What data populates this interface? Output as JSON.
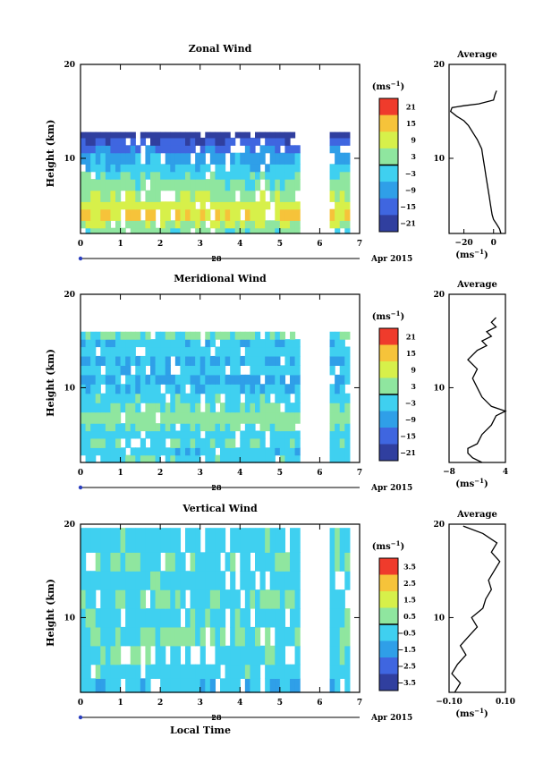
{
  "chart_data": [
    {
      "type": "heatmap",
      "title": "Zonal Wind",
      "ylabel": "Height (km)",
      "x_ticks": [
        "0",
        "1",
        "2",
        "3",
        "4",
        "5",
        "6",
        "7"
      ],
      "xlim": [
        0,
        7
      ],
      "y_ticks": [
        "10",
        "20"
      ],
      "ylim": [
        2,
        20
      ],
      "date_label": "28",
      "month_label": "Apr 2015",
      "colorbar": {
        "unit": "(ms",
        "unit_sup": "−1",
        "unit_close": ")",
        "ticks": [
          "21",
          "15",
          "9",
          "3",
          "−3",
          "−9",
          "−15",
          "−21"
        ],
        "range": [
          -24,
          24
        ]
      },
      "bands": [
        {
          "y0": 2.0,
          "y1": 2.6,
          "v": 1
        },
        {
          "y0": 2.6,
          "y1": 3.4,
          "v": 6
        },
        {
          "y0": 3.4,
          "y1": 4.6,
          "v": 12
        },
        {
          "y0": 4.6,
          "y1": 5.4,
          "v": 9
        },
        {
          "y0": 5.4,
          "y1": 6.6,
          "v": 5
        },
        {
          "y0": 6.6,
          "y1": 7.8,
          "v": 2
        },
        {
          "y0": 7.8,
          "y1": 8.6,
          "v": -1
        },
        {
          "y0": 8.6,
          "y1": 9.4,
          "v": -4
        },
        {
          "y0": 9.4,
          "y1": 10.6,
          "v": -8
        },
        {
          "y0": 10.6,
          "y1": 11.4,
          "v": -13
        },
        {
          "y0": 11.4,
          "y1": 12.2,
          "v": -17
        },
        {
          "y0": 12.2,
          "y1": 12.8,
          "v": -21
        }
      ],
      "average": {
        "title": "Average",
        "xlabel": "(ms",
        "xlabel_sup": "−1",
        "xlabel_close": ")",
        "x_ticks": [
          "−20",
          "0"
        ],
        "xlim": [
          -30,
          8
        ],
        "y_ticks": [
          "10",
          "20"
        ],
        "profile": [
          [
            5,
            2
          ],
          [
            4,
            2.5
          ],
          [
            2,
            3
          ],
          [
            0,
            3.5
          ],
          [
            -1,
            4
          ],
          [
            -2,
            5
          ],
          [
            -3,
            6
          ],
          [
            -4,
            7
          ],
          [
            -5,
            8
          ],
          [
            -6,
            9
          ],
          [
            -7,
            10
          ],
          [
            -8,
            11
          ],
          [
            -11,
            12
          ],
          [
            -13,
            12.5
          ],
          [
            -15,
            13
          ],
          [
            -17,
            13.5
          ],
          [
            -20,
            14
          ],
          [
            -25,
            14.5
          ],
          [
            -29,
            15
          ],
          [
            -28,
            15.4
          ],
          [
            -20,
            15.6
          ],
          [
            -10,
            15.8
          ],
          [
            0,
            16.2
          ],
          [
            1,
            16.8
          ],
          [
            2,
            17.2
          ]
        ]
      }
    },
    {
      "type": "heatmap",
      "title": "Meridional Wind",
      "ylabel": "Height (km)",
      "x_ticks": [
        "0",
        "1",
        "2",
        "3",
        "4",
        "5",
        "6",
        "7"
      ],
      "xlim": [
        0,
        7
      ],
      "y_ticks": [
        "10",
        "20"
      ],
      "ylim": [
        2,
        20
      ],
      "date_label": "28",
      "month_label": "Apr 2015",
      "colorbar": {
        "unit": "(ms",
        "unit_sup": "−1",
        "unit_close": ")",
        "ticks": [
          "21",
          "15",
          "9",
          "3",
          "−3",
          "−9",
          "−15",
          "−21"
        ],
        "range": [
          -24,
          24
        ]
      },
      "bands": [
        {
          "y0": 2.0,
          "y1": 2.8,
          "v": -2
        },
        {
          "y0": 2.8,
          "y1": 3.6,
          "v": -4
        },
        {
          "y0": 3.6,
          "y1": 4.6,
          "v": -1
        },
        {
          "y0": 4.6,
          "y1": 5.4,
          "v": -3
        },
        {
          "y0": 5.4,
          "y1": 6.2,
          "v": 1
        },
        {
          "y0": 6.2,
          "y1": 7.4,
          "v": 3
        },
        {
          "y0": 7.4,
          "y1": 8.4,
          "v": 0
        },
        {
          "y0": 8.4,
          "y1": 9.4,
          "v": -2
        },
        {
          "y0": 9.4,
          "y1": 10.4,
          "v": -5
        },
        {
          "y0": 10.4,
          "y1": 11.4,
          "v": -7
        },
        {
          "y0": 11.4,
          "y1": 12.4,
          "v": -4
        },
        {
          "y0": 12.4,
          "y1": 13.4,
          "v": -6
        },
        {
          "y0": 13.4,
          "y1": 14.4,
          "v": -3
        },
        {
          "y0": 14.4,
          "y1": 15.2,
          "v": -5
        },
        {
          "y0": 15.2,
          "y1": 16.0,
          "v": 0
        }
      ],
      "average": {
        "title": "Average",
        "xlabel": "(ms",
        "xlabel_sup": "−1",
        "xlabel_close": ")",
        "x_ticks": [
          "−8",
          "4"
        ],
        "xlim": [
          -8,
          4
        ],
        "y_ticks": [
          "10",
          "20"
        ],
        "profile": [
          [
            -1,
            2
          ],
          [
            -3,
            2.5
          ],
          [
            -4,
            3
          ],
          [
            -4,
            3.5
          ],
          [
            -2,
            4
          ],
          [
            -1,
            5
          ],
          [
            1,
            6
          ],
          [
            2,
            7
          ],
          [
            4,
            7.5
          ],
          [
            1,
            8
          ],
          [
            -1,
            9
          ],
          [
            -2,
            10
          ],
          [
            -3,
            11
          ],
          [
            -2,
            12
          ],
          [
            -4,
            13
          ],
          [
            -2,
            14
          ],
          [
            0,
            14.5
          ],
          [
            -1,
            15
          ],
          [
            1,
            15.5
          ],
          [
            0,
            16
          ],
          [
            2,
            16.5
          ],
          [
            1,
            17
          ],
          [
            2,
            17.5
          ]
        ]
      }
    },
    {
      "type": "heatmap",
      "title": "Vertical Wind",
      "ylabel": "Height (km)",
      "xlabel": "Local Time",
      "x_ticks": [
        "0",
        "1",
        "2",
        "3",
        "4",
        "5",
        "6",
        "7"
      ],
      "xlim": [
        0,
        7
      ],
      "y_ticks": [
        "10",
        "20"
      ],
      "ylim": [
        2,
        20
      ],
      "date_label": "28",
      "month_label": "Apr 2015",
      "colorbar": {
        "unit": "(ms",
        "unit_sup": "−1",
        "unit_close": ")",
        "ticks": [
          "3.5",
          "2.5",
          "1.5",
          "0.5",
          "−0.5",
          "−1.5",
          "−2.5",
          "−3.5"
        ],
        "range": [
          -4,
          4
        ]
      },
      "bands": [
        {
          "y0": 2.0,
          "y1": 3.5,
          "v": -0.7
        },
        {
          "y0": 3.5,
          "y1": 5.0,
          "v": -0.4
        },
        {
          "y0": 5.0,
          "y1": 7.0,
          "v": -0.2
        },
        {
          "y0": 7.0,
          "y1": 9.0,
          "v": 0.1
        },
        {
          "y0": 9.0,
          "y1": 11.0,
          "v": -0.3
        },
        {
          "y0": 11.0,
          "y1": 13.0,
          "v": 0.0
        },
        {
          "y0": 13.0,
          "y1": 15.0,
          "v": -0.4
        },
        {
          "y0": 15.0,
          "y1": 17.0,
          "v": -0.1
        },
        {
          "y0": 17.0,
          "y1": 19.6,
          "v": -0.3
        }
      ],
      "average": {
        "title": "Average",
        "xlabel": "(ms",
        "xlabel_sup": "−1",
        "xlabel_close": ")",
        "x_ticks": [
          "−0.10",
          "0.10"
        ],
        "xlim": [
          -0.1,
          0.1
        ],
        "y_ticks": [
          "10",
          "20"
        ],
        "profile": [
          [
            -0.08,
            2
          ],
          [
            -0.06,
            3
          ],
          [
            -0.09,
            4
          ],
          [
            -0.07,
            5
          ],
          [
            -0.04,
            6
          ],
          [
            -0.06,
            7
          ],
          [
            -0.03,
            8
          ],
          [
            0.0,
            9
          ],
          [
            -0.02,
            10
          ],
          [
            0.02,
            11
          ],
          [
            0.03,
            12
          ],
          [
            0.05,
            13
          ],
          [
            0.04,
            14
          ],
          [
            0.06,
            15
          ],
          [
            0.08,
            16
          ],
          [
            0.05,
            17
          ],
          [
            0.07,
            18
          ],
          [
            0.02,
            19
          ],
          [
            -0.05,
            19.8
          ]
        ]
      }
    }
  ]
}
